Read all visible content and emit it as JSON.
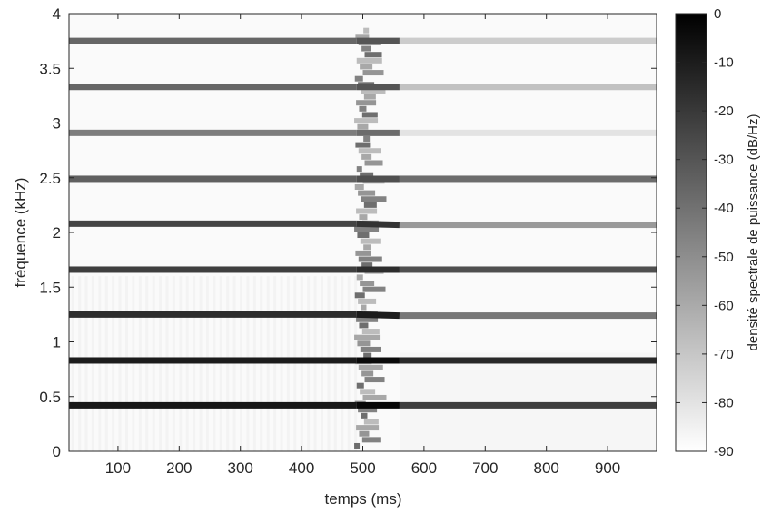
{
  "chart_data": {
    "type": "heatmap",
    "title": "",
    "xlabel": "temps (ms)",
    "ylabel": "fréquence (kHz)",
    "xlim": [
      20,
      980
    ],
    "ylim": [
      0,
      4
    ],
    "xticks": [
      100,
      200,
      300,
      400,
      500,
      600,
      700,
      800,
      900
    ],
    "yticks": [
      0,
      0.5,
      1,
      1.5,
      2,
      2.5,
      3,
      3.5,
      4
    ],
    "colormap": "gray-reversed",
    "colorbar": {
      "label": "densité spectrale de puissance (dB/Hz)",
      "range": [
        -90,
        0
      ],
      "ticks": [
        0,
        -10,
        -20,
        -30,
        -40,
        -50,
        -60,
        -70,
        -80,
        -90
      ]
    },
    "harmonic_bands": [
      {
        "freq_before": 0.42,
        "freq_after": 0.42,
        "db_before": -8,
        "db_after": -22
      },
      {
        "freq_before": 0.83,
        "freq_after": 0.83,
        "db_before": -10,
        "db_after": -14
      },
      {
        "freq_before": 1.25,
        "freq_after": 1.24,
        "db_before": -16,
        "db_after": -42
      },
      {
        "freq_before": 1.66,
        "freq_after": 1.66,
        "db_before": -22,
        "db_after": -28
      },
      {
        "freq_before": 2.08,
        "freq_after": 2.07,
        "db_before": -24,
        "db_after": -54
      },
      {
        "freq_before": 2.49,
        "freq_after": 2.49,
        "db_before": -34,
        "db_after": -38
      },
      {
        "freq_before": 2.91,
        "freq_after": 2.91,
        "db_before": -44,
        "db_after": -80
      },
      {
        "freq_before": 3.33,
        "freq_after": 3.33,
        "db_before": -36,
        "db_after": -68
      },
      {
        "freq_before": 3.75,
        "freq_after": 3.75,
        "db_before": -36,
        "db_after": -72
      }
    ],
    "transition_time_ms": 490,
    "transition_end_ms": 560
  }
}
